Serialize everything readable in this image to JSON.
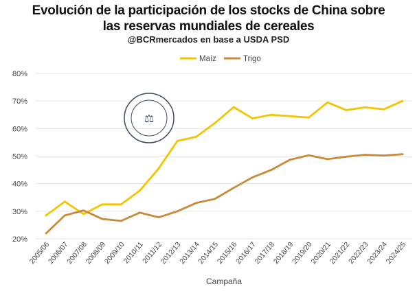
{
  "chart_data": {
    "type": "line",
    "title": "Evolución de la participación de los stocks de China sobre las reservas mundiales de cereales",
    "title_lines": [
      "Evolución de la participación de los stocks de China sobre",
      "las reservas mundiales de cereales"
    ],
    "subtitle": "@BCRmercados en base a USDA PSD",
    "xlabel": "Campaña",
    "ylabel": "",
    "ylim": [
      20,
      80
    ],
    "yticks": [
      "20%",
      "30%",
      "40%",
      "50%",
      "60%",
      "70%",
      "80%"
    ],
    "categories": [
      "2005/06",
      "2006/07",
      "2007/08",
      "2008/09",
      "2009/10",
      "2010/11",
      "2011/12",
      "2012/13",
      "2013/14",
      "2014/15",
      "2015/16",
      "2016/17",
      "2017/18",
      "2018/19",
      "2019/20",
      "2020/21",
      "2021/22",
      "2022/23",
      "2023/24",
      "2024/25"
    ],
    "series": [
      {
        "name": "Maíz",
        "color": "#F2C500",
        "values": [
          28.5,
          33.5,
          29,
          32.5,
          32.5,
          37.5,
          45.5,
          55.5,
          57,
          62,
          67.8,
          63.7,
          65,
          64.5,
          64,
          69.5,
          66.7,
          67.7,
          67,
          70
        ]
      },
      {
        "name": "Trigo",
        "color": "#C98A3A",
        "values": [
          22,
          28.5,
          30.3,
          27.2,
          26.5,
          29.5,
          27.8,
          30,
          33,
          34.5,
          38.5,
          42.3,
          45,
          48.7,
          50.3,
          48.9,
          49.8,
          50.5,
          50.2,
          50.7
        ]
      }
    ],
    "grid": true,
    "legend_position": "top-center",
    "watermark": "BOLSA DE COMERCIO DE ROSARIO"
  }
}
